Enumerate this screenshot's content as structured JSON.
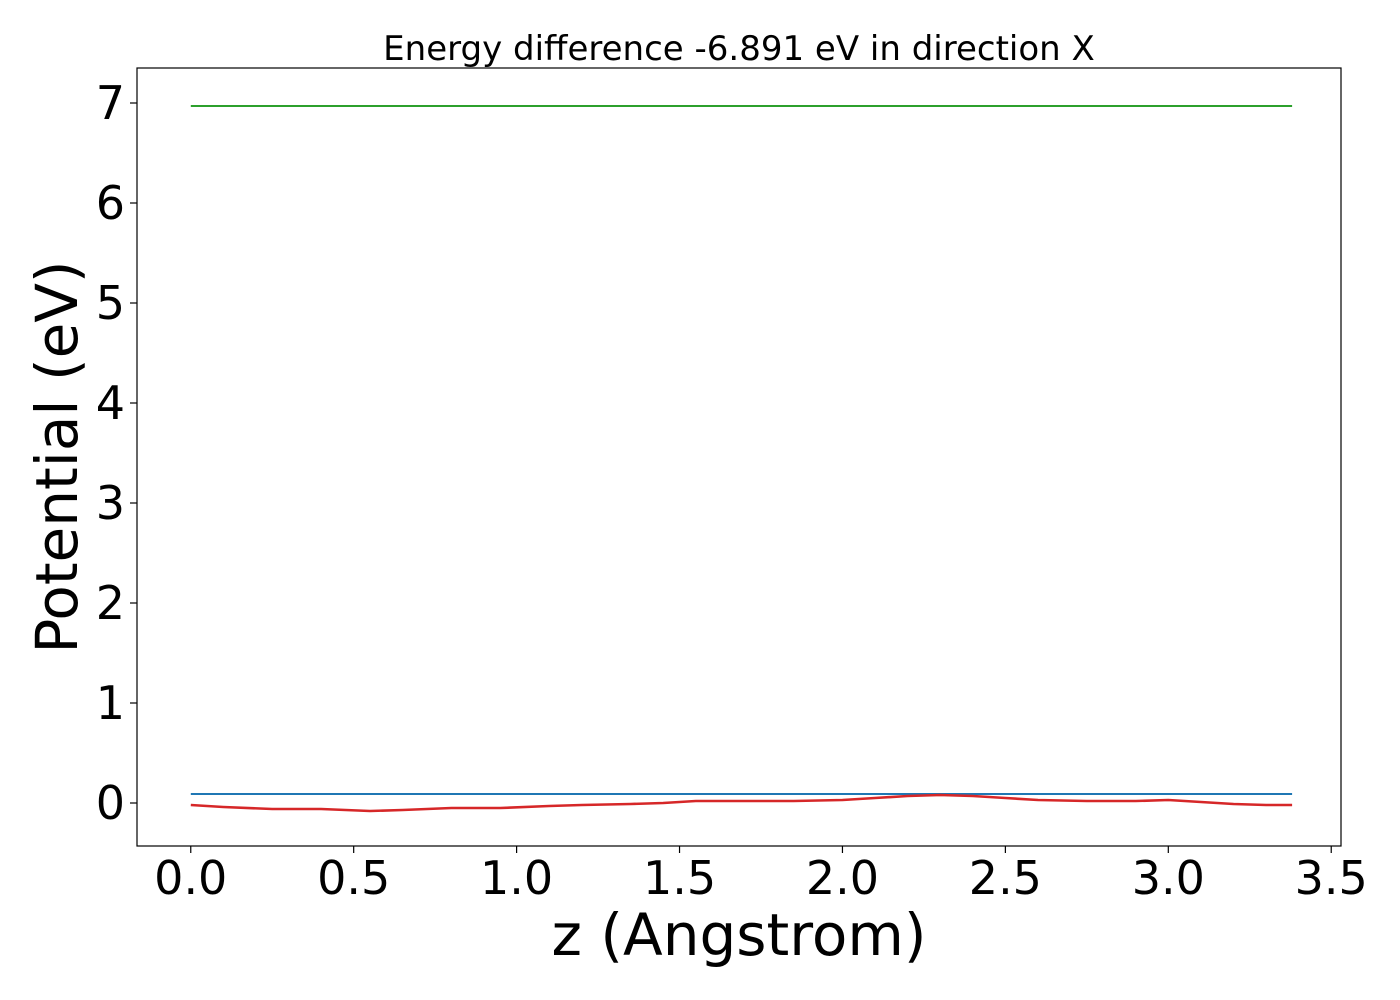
{
  "chart_data": {
    "type": "line",
    "title": "Energy difference -6.891 eV in direction X",
    "xlabel": "z (Angstrom)",
    "ylabel": "Potential (eV)",
    "xlim": [
      -0.165,
      3.53
    ],
    "ylim": [
      -0.43,
      7.35
    ],
    "xticks": [
      0.0,
      0.5,
      1.0,
      1.5,
      2.0,
      2.5,
      3.0,
      3.5
    ],
    "xtick_labels": [
      "0.0",
      "0.5",
      "1.0",
      "1.5",
      "2.0",
      "2.5",
      "3.0",
      "3.5"
    ],
    "yticks": [
      0,
      1,
      2,
      3,
      4,
      5,
      6,
      7
    ],
    "ytick_labels": [
      "0",
      "1",
      "2",
      "3",
      "4",
      "5",
      "6",
      "7"
    ],
    "grid": false,
    "series": [
      {
        "color": "#1f77b4",
        "x": [
          0.0,
          3.38
        ],
        "y": [
          0.09,
          0.09
        ]
      },
      {
        "color": "#2ca02c",
        "x": [
          0.0,
          3.38
        ],
        "y": [
          6.97,
          6.97
        ]
      },
      {
        "color": "#d62728",
        "x": [
          0.0,
          0.1,
          0.25,
          0.4,
          0.55,
          0.65,
          0.8,
          0.95,
          1.1,
          1.2,
          1.35,
          1.45,
          1.55,
          1.7,
          1.85,
          2.0,
          2.1,
          2.2,
          2.3,
          2.4,
          2.5,
          2.6,
          2.75,
          2.9,
          3.0,
          3.1,
          3.2,
          3.3,
          3.38
        ],
        "y": [
          -0.02,
          -0.04,
          -0.06,
          -0.06,
          -0.08,
          -0.07,
          -0.05,
          -0.05,
          -0.03,
          -0.02,
          -0.01,
          0.0,
          0.02,
          0.02,
          0.02,
          0.03,
          0.05,
          0.07,
          0.08,
          0.07,
          0.05,
          0.03,
          0.02,
          0.02,
          0.03,
          0.01,
          -0.01,
          -0.02,
          -0.02
        ]
      }
    ]
  }
}
